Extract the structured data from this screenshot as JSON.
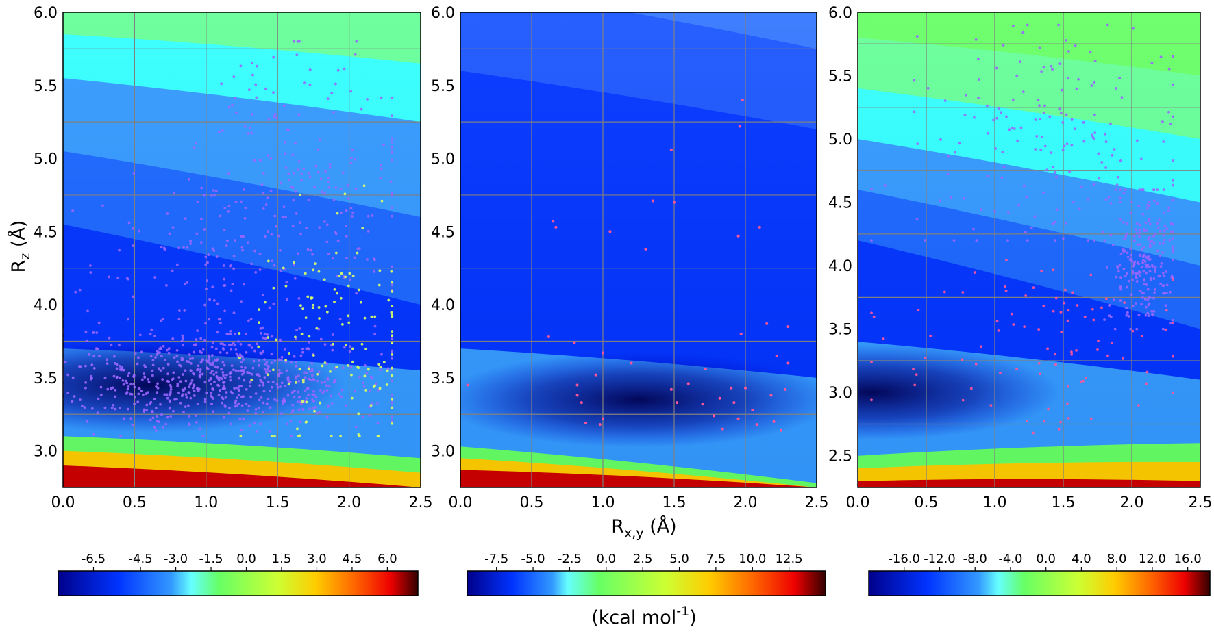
{
  "colors": {
    "colormap": [
      "#00008b",
      "#0033ff",
      "#3399ff",
      "#33ffff",
      "#66ff66",
      "#ccff33",
      "#ffcc00",
      "#ff6600",
      "#ee0000",
      "#330000"
    ],
    "grid": "#808080",
    "point_purple": "#9966ff",
    "point_pink": "#ff5599",
    "point_yellow": "#ddff66"
  },
  "labels": {
    "ylabel_main": "R",
    "ylabel_sub": "z",
    "ylabel_unit": " (Å)",
    "xlabel_main": "R",
    "xlabel_sub": "x,y",
    "xlabel_unit": " (Å)",
    "units_main": "(kcal mol",
    "units_sup": "-1",
    "units_close": ")"
  },
  "chart_data": [
    {
      "type": "heatmap",
      "title": "",
      "xlabel": "R x,y (Å)",
      "ylabel": "R z (Å)",
      "xlim": [
        0.0,
        2.5
      ],
      "ylim": [
        2.75,
        6.0
      ],
      "grid": true,
      "x_ticks": [
        "0.0",
        "0.5",
        "1.0",
        "1.5",
        "2.0",
        "2.5"
      ],
      "y_ticks": [
        "3.0",
        "3.5",
        "4.0",
        "4.5",
        "5.0",
        "5.5",
        "6.0"
      ],
      "y_gridlines": [
        3.25,
        3.75,
        4.25,
        4.75,
        5.25,
        5.75
      ],
      "energy_surface": {
        "minimum": {
          "x": 0.6,
          "z": 3.45
        },
        "levels": [
          {
            "z_at_x0": 2.75,
            "z_at_x25": 2.75,
            "color": "#cc0000"
          },
          {
            "z_at_x0": 2.9,
            "z_at_x25": 2.75,
            "color": "#ffcc00"
          },
          {
            "z_at_x0": 3.0,
            "z_at_x25": 2.85,
            "color": "#66ff66"
          },
          {
            "z_at_x0": 3.1,
            "z_at_x25": 2.95,
            "color": "#3399ff"
          },
          {
            "z_at_x0": 3.7,
            "z_at_x25": 3.55,
            "color": "#0033ff"
          },
          {
            "z_at_x0": 4.55,
            "z_at_x25": 4.0,
            "color": "#1a66ff"
          },
          {
            "z_at_x0": 5.05,
            "z_at_x25": 4.6,
            "color": "#3399ff"
          },
          {
            "z_at_x0": 5.55,
            "z_at_x25": 5.25,
            "color": "#33ffff"
          },
          {
            "z_at_x0": 5.85,
            "z_at_x25": 5.65,
            "color": "#66ff99"
          }
        ]
      },
      "point_clusters": [
        {
          "name": "",
          "color": "#9966ff",
          "count": 700,
          "center": [
            1.1,
            3.5
          ],
          "spread": [
            0.6,
            0.17
          ],
          "x_range": [
            0.0,
            2.3
          ],
          "y_range": [
            3.1,
            3.9
          ]
        },
        {
          "name": "",
          "color": "#9966ff",
          "count": 160,
          "center": [
            1.7,
            5.0
          ],
          "spread": [
            0.4,
            0.4
          ],
          "x_range": [
            0.2,
            2.3
          ],
          "y_range": [
            3.9,
            5.8
          ]
        },
        {
          "name": "",
          "color": "#9966ff",
          "count": 150,
          "center": [
            1.2,
            4.3
          ],
          "spread": [
            0.55,
            0.3
          ],
          "x_range": [
            0.0,
            2.3
          ],
          "y_range": [
            3.8,
            4.9
          ]
        },
        {
          "name": "",
          "color": "#ddff66",
          "count": 140,
          "center": [
            1.9,
            3.75
          ],
          "spread": [
            0.3,
            0.45
          ],
          "x_range": [
            1.1,
            2.3
          ],
          "y_range": [
            3.1,
            5.4
          ]
        }
      ]
    },
    {
      "type": "heatmap",
      "title": "",
      "xlabel": "R x,y (Å)",
      "ylabel": "",
      "xlim": [
        0.0,
        2.5
      ],
      "ylim": [
        2.75,
        6.0
      ],
      "grid": true,
      "x_ticks": [
        "0.0",
        "0.5",
        "1.0",
        "1.5",
        "2.0",
        "2.5"
      ],
      "y_ticks": [
        "3.0",
        "3.5",
        "4.0",
        "4.5",
        "5.0",
        "5.5",
        "6.0"
      ],
      "y_gridlines": [
        3.25,
        3.75,
        4.25,
        4.75,
        5.25,
        5.75
      ],
      "energy_surface": {
        "minimum": {
          "x": 1.25,
          "z": 3.35
        },
        "levels": [
          {
            "z_at_x0": 2.75,
            "z_at_x25": 2.75,
            "color": "#cc0000"
          },
          {
            "z_at_x0": 2.87,
            "z_at_x25": 2.75,
            "color": "#ffcc00"
          },
          {
            "z_at_x0": 2.95,
            "z_at_x25": 2.75,
            "color": "#66ff66"
          },
          {
            "z_at_x0": 3.03,
            "z_at_x25": 2.78,
            "color": "#3399ff"
          },
          {
            "z_at_x0": 3.7,
            "z_at_x25": 3.5,
            "color": "#0033ff"
          },
          {
            "z_at_x0": 5.6,
            "z_at_x25": 5.2,
            "color": "#1a55ff"
          },
          {
            "z_at_x0": 6.2,
            "z_at_x25": 5.75,
            "color": "#3377ff"
          }
        ]
      },
      "points": [
        [
          0.05,
          3.45
        ],
        [
          0.62,
          3.78
        ],
        [
          0.65,
          4.57
        ],
        [
          0.67,
          4.53
        ],
        [
          0.8,
          3.74
        ],
        [
          0.82,
          3.45
        ],
        [
          0.82,
          3.38
        ],
        [
          0.85,
          3.33
        ],
        [
          0.88,
          3.19
        ],
        [
          0.95,
          3.52
        ],
        [
          0.98,
          3.18
        ],
        [
          1.0,
          3.67
        ],
        [
          1.0,
          3.22
        ],
        [
          1.05,
          4.5
        ],
        [
          1.2,
          3.6
        ],
        [
          1.3,
          4.38
        ],
        [
          1.35,
          4.71
        ],
        [
          1.48,
          3.42
        ],
        [
          1.48,
          5.06
        ],
        [
          1.5,
          4.7
        ],
        [
          1.52,
          3.33
        ],
        [
          1.6,
          3.46
        ],
        [
          1.7,
          3.32
        ],
        [
          1.72,
          3.56
        ],
        [
          1.78,
          3.24
        ],
        [
          1.82,
          3.36
        ],
        [
          1.84,
          3.15
        ],
        [
          1.9,
          3.43
        ],
        [
          1.92,
          3.33
        ],
        [
          1.95,
          3.22
        ],
        [
          1.95,
          4.47
        ],
        [
          1.96,
          5.22
        ],
        [
          1.97,
          3.8
        ],
        [
          1.98,
          5.4
        ],
        [
          2.0,
          3.43
        ],
        [
          2.05,
          3.28
        ],
        [
          2.08,
          3.18
        ],
        [
          2.1,
          4.53
        ],
        [
          2.15,
          3.87
        ],
        [
          2.18,
          3.38
        ],
        [
          2.2,
          3.2
        ],
        [
          2.22,
          3.65
        ],
        [
          2.25,
          3.14
        ],
        [
          2.28,
          3.42
        ],
        [
          2.3,
          3.6
        ],
        [
          2.3,
          3.85
        ]
      ]
    },
    {
      "type": "heatmap",
      "title": "",
      "xlabel": "R x,y (Å)",
      "ylabel": "",
      "xlim": [
        0.0,
        2.5
      ],
      "ylim": [
        2.25,
        6.0
      ],
      "grid": true,
      "x_ticks": [
        "0.0",
        "0.5",
        "1.0",
        "1.5",
        "2.0",
        "2.5"
      ],
      "y_ticks": [
        "2.5",
        "3.0",
        "3.5",
        "4.0",
        "4.5",
        "5.0",
        "5.5",
        "6.0"
      ],
      "y_gridlines": [
        2.75,
        3.25,
        3.75,
        4.25,
        4.75,
        5.25,
        5.75
      ],
      "energy_surface": {
        "minimum": {
          "x": 0.1,
          "z": 3.0
        },
        "levels": [
          {
            "z_at_x0": 2.25,
            "z_at_x25": 2.25,
            "color": "#cc0000"
          },
          {
            "z_at_x0": 2.3,
            "z_at_x25": 2.3,
            "color": "#ffcc00"
          },
          {
            "z_at_x0": 2.4,
            "z_at_x25": 2.45,
            "color": "#66ff66"
          },
          {
            "z_at_x0": 2.5,
            "z_at_x25": 2.6,
            "color": "#3399ff"
          },
          {
            "z_at_x0": 3.4,
            "z_at_x25": 3.1,
            "color": "#0033ff"
          },
          {
            "z_at_x0": 4.2,
            "z_at_x25": 3.5,
            "color": "#1a66ff"
          },
          {
            "z_at_x0": 4.6,
            "z_at_x25": 4.0,
            "color": "#3399ff"
          },
          {
            "z_at_x0": 5.0,
            "z_at_x25": 4.5,
            "color": "#33ffff"
          },
          {
            "z_at_x0": 5.4,
            "z_at_x25": 5.0,
            "color": "#66ff99"
          },
          {
            "z_at_x0": 5.8,
            "z_at_x25": 5.5,
            "color": "#66ff66"
          }
        ]
      },
      "point_clusters": [
        {
          "name": "",
          "color": "#9966ff",
          "count": 230,
          "center": [
            2.1,
            4.05
          ],
          "spread": [
            0.13,
            0.28
          ],
          "x_range": [
            1.8,
            2.3
          ],
          "y_range": [
            3.5,
            4.6
          ]
        },
        {
          "name": "",
          "color": "#9966ff",
          "count": 170,
          "center": [
            1.4,
            5.0
          ],
          "spread": [
            0.5,
            0.45
          ],
          "x_range": [
            0.1,
            2.3
          ],
          "y_range": [
            4.2,
            5.9
          ]
        },
        {
          "name": "",
          "color": "#ff5599",
          "count": 90,
          "center": [
            1.4,
            3.4
          ],
          "spread": [
            0.6,
            0.35
          ],
          "x_range": [
            0.1,
            2.3
          ],
          "y_range": [
            2.45,
            4.3
          ]
        }
      ]
    }
  ],
  "colorbars": [
    {
      "ticks": [
        "-6.5",
        "-4.5",
        "-3.0",
        "-1.5",
        "0.0",
        "1.5",
        "3.0",
        "4.5",
        "6.0"
      ],
      "range": [
        -8.0,
        7.3
      ],
      "light_at": 0.37
    },
    {
      "ticks": [
        "-7.5",
        "-5.0",
        "-2.5",
        "0.0",
        "2.5",
        "5.0",
        "7.5",
        "10.0",
        "12.5"
      ],
      "range": [
        -9.5,
        15.0
      ],
      "light_at": 0.28
    },
    {
      "ticks": [
        "-16.0",
        "-12.0",
        "-8.0",
        "-4.0",
        "0.0",
        "4.0",
        "8.0",
        "12.0",
        "16.0"
      ],
      "range": [
        -20.0,
        18.5
      ],
      "light_at": 0.38
    }
  ]
}
